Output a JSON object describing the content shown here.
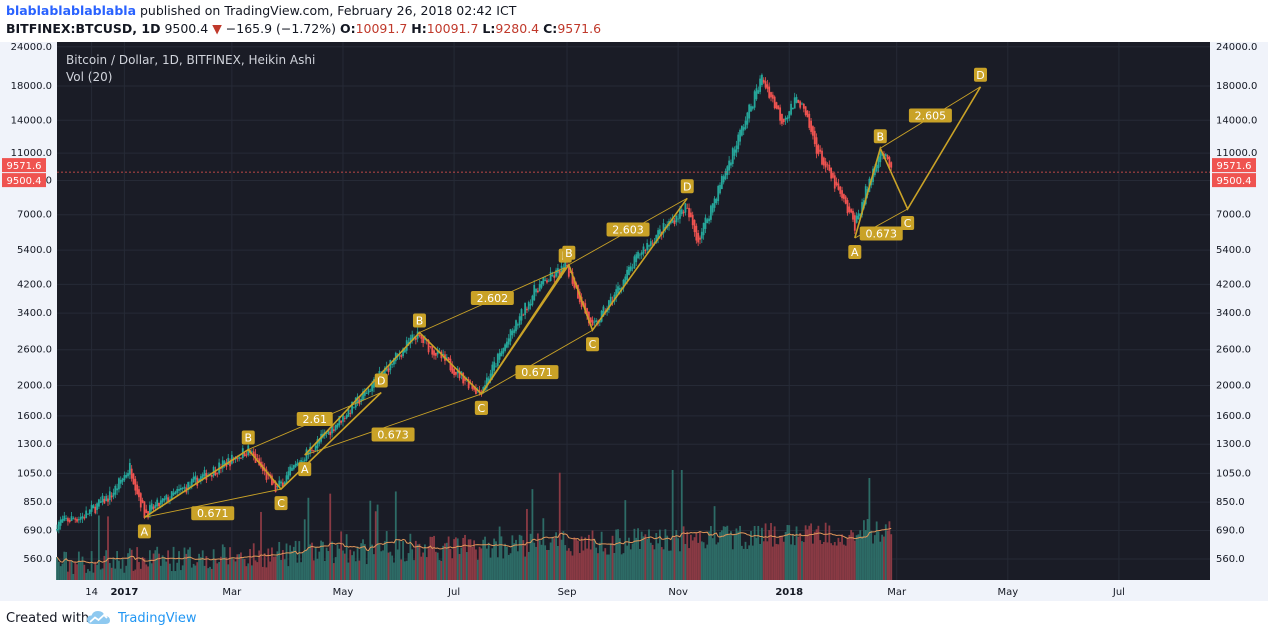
{
  "header": {
    "user": "blablablablablabla",
    "published": "published on TradingView.com, February 26, 2018 02:42 ICT",
    "symbol": "BITFINEX:BTCUSD, 1D",
    "last": "9500.4",
    "change": "−165.9 (−1.72%)",
    "o_label": "O:",
    "o_value": "10091.7",
    "h_label": "H:",
    "h_value": "10091.7",
    "l_label": "L:",
    "l_value": "9280.4",
    "c_label": "C:",
    "c_value": "9571.6"
  },
  "footer": {
    "created": "Created with",
    "brand": "TradingView"
  },
  "chart_data": {
    "type": "candlestick",
    "title": "Bitcoin / Dollar, 1D, BITFINEX, Heikin Ashi",
    "subtitle": "Vol (20)",
    "y_scale": "log",
    "y_ticks": [
      "560.0",
      "690.0",
      "850.0",
      "1050.0",
      "1300.0",
      "1600.0",
      "2000.0",
      "2600.0",
      "3400.0",
      "4200.0",
      "5400.0",
      "7000.0",
      "9000.0",
      "11000.0",
      "14000.0",
      "18000.0",
      "24000.0"
    ],
    "x_ticks": [
      "14",
      "2017",
      "Mar",
      "May",
      "Jul",
      "Sep",
      "Nov",
      "2018",
      "Mar",
      "May",
      "Jul"
    ],
    "x_range": [
      "2016-11-25",
      "2018-08-20"
    ],
    "y_range": [
      480,
      24500
    ],
    "price_tags": [
      {
        "label": "9571.6",
        "value": 9571.6,
        "color": "#ef5350"
      },
      {
        "label": "9500.4",
        "value": 9500.4,
        "color": "#ef5350"
      }
    ],
    "series": [
      {
        "date": "2016-11-25",
        "close": 730
      },
      {
        "date": "2016-12-10",
        "close": 770
      },
      {
        "date": "2016-12-25",
        "close": 900
      },
      {
        "date": "2017-01-04",
        "close": 1100
      },
      {
        "date": "2017-01-12",
        "close": 780
      },
      {
        "date": "2017-02-10",
        "close": 1000
      },
      {
        "date": "2017-03-10",
        "close": 1250
      },
      {
        "date": "2017-03-25",
        "close": 930
      },
      {
        "date": "2017-04-10",
        "close": 1200
      },
      {
        "date": "2017-05-10",
        "close": 1800
      },
      {
        "date": "2017-06-10",
        "close": 2900
      },
      {
        "date": "2017-07-15",
        "close": 1900
      },
      {
        "date": "2017-08-15",
        "close": 4100
      },
      {
        "date": "2017-09-01",
        "close": 4800
      },
      {
        "date": "2017-09-15",
        "close": 3000
      },
      {
        "date": "2017-10-12",
        "close": 5400
      },
      {
        "date": "2017-11-05",
        "close": 7400
      },
      {
        "date": "2017-11-12",
        "close": 5800
      },
      {
        "date": "2017-12-17",
        "close": 19200
      },
      {
        "date": "2017-12-28",
        "close": 14000
      },
      {
        "date": "2018-01-06",
        "close": 16500
      },
      {
        "date": "2018-01-17",
        "close": 11000
      },
      {
        "date": "2018-02-06",
        "close": 6500
      },
      {
        "date": "2018-02-20",
        "close": 11400
      },
      {
        "date": "2018-02-26",
        "close": 9571.6
      }
    ],
    "patterns": [
      {
        "points": [
          [
            "A",
            "2017-01-12",
            760
          ],
          [
            "B",
            "2017-03-10",
            1250
          ],
          [
            "C",
            "2017-03-28",
            935
          ],
          [
            "D",
            "2017-05-22",
            1900
          ]
        ],
        "ratios": [
          "0.671",
          "2.61"
        ]
      },
      {
        "points": [
          [
            "A",
            "2017-04-10",
            1200
          ],
          [
            "B",
            "2017-06-12",
            2950
          ],
          [
            "C",
            "2017-07-16",
            1880
          ],
          [
            "D",
            "2017-08-31",
            4750
          ]
        ],
        "ratios": [
          "0.673",
          "2.602"
        ]
      },
      {
        "points": [
          [
            "C",
            "2017-07-16",
            1880
          ],
          [
            "B",
            "2017-09-02",
            4850
          ],
          [
            "C",
            "2017-09-15",
            3000
          ],
          [
            "D",
            "2017-11-06",
            7900
          ]
        ],
        "ratios": [
          "0.671",
          "2.603"
        ]
      },
      {
        "points": [
          [
            "A",
            "2018-02-06",
            5900
          ],
          [
            "B",
            "2018-02-20",
            11400
          ],
          [
            "C",
            "2018-03-07",
            7300
          ],
          [
            "D",
            "2018-04-16",
            17900
          ]
        ],
        "ratios": [
          "0.673",
          "2.605"
        ]
      }
    ]
  }
}
